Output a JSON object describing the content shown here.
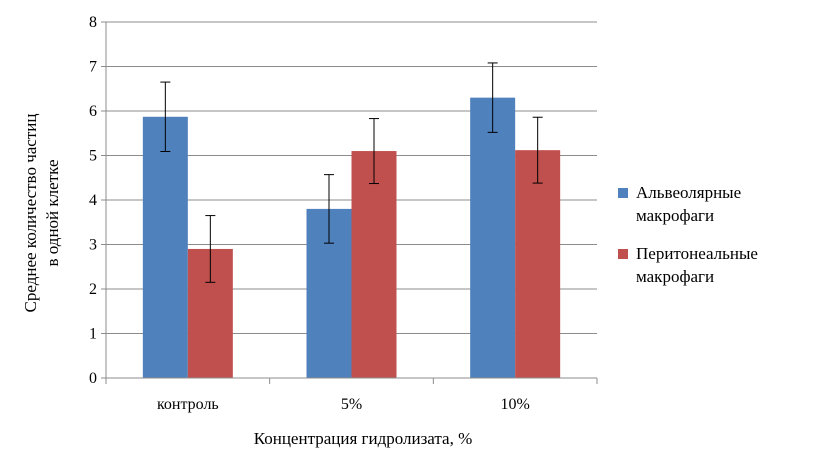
{
  "chart_data": {
    "type": "bar",
    "title": "",
    "xlabel": "Концентрация гидролизата, %",
    "ylabel_lines": [
      "Среднее количество частиц",
      "в одной клетке"
    ],
    "categories": [
      "контроль",
      "5%",
      "10%"
    ],
    "series": [
      {
        "name_lines": [
          "Альвеолярные",
          "макрофаги"
        ],
        "color": "#4f81bd",
        "values": [
          5.87,
          3.8,
          6.3
        ],
        "errors": [
          0.78,
          0.77,
          0.78
        ]
      },
      {
        "name_lines": [
          "Перитонеальные",
          "макрофаги"
        ],
        "color": "#c0504d",
        "values": [
          2.9,
          5.1,
          5.12
        ],
        "errors": [
          0.75,
          0.73,
          0.74
        ]
      }
    ],
    "ylim": [
      0,
      8
    ],
    "yticks": [
      "0",
      "1",
      "2",
      "3",
      "4",
      "5",
      "6",
      "7",
      "8"
    ],
    "grid": true,
    "legend_position": "right"
  }
}
